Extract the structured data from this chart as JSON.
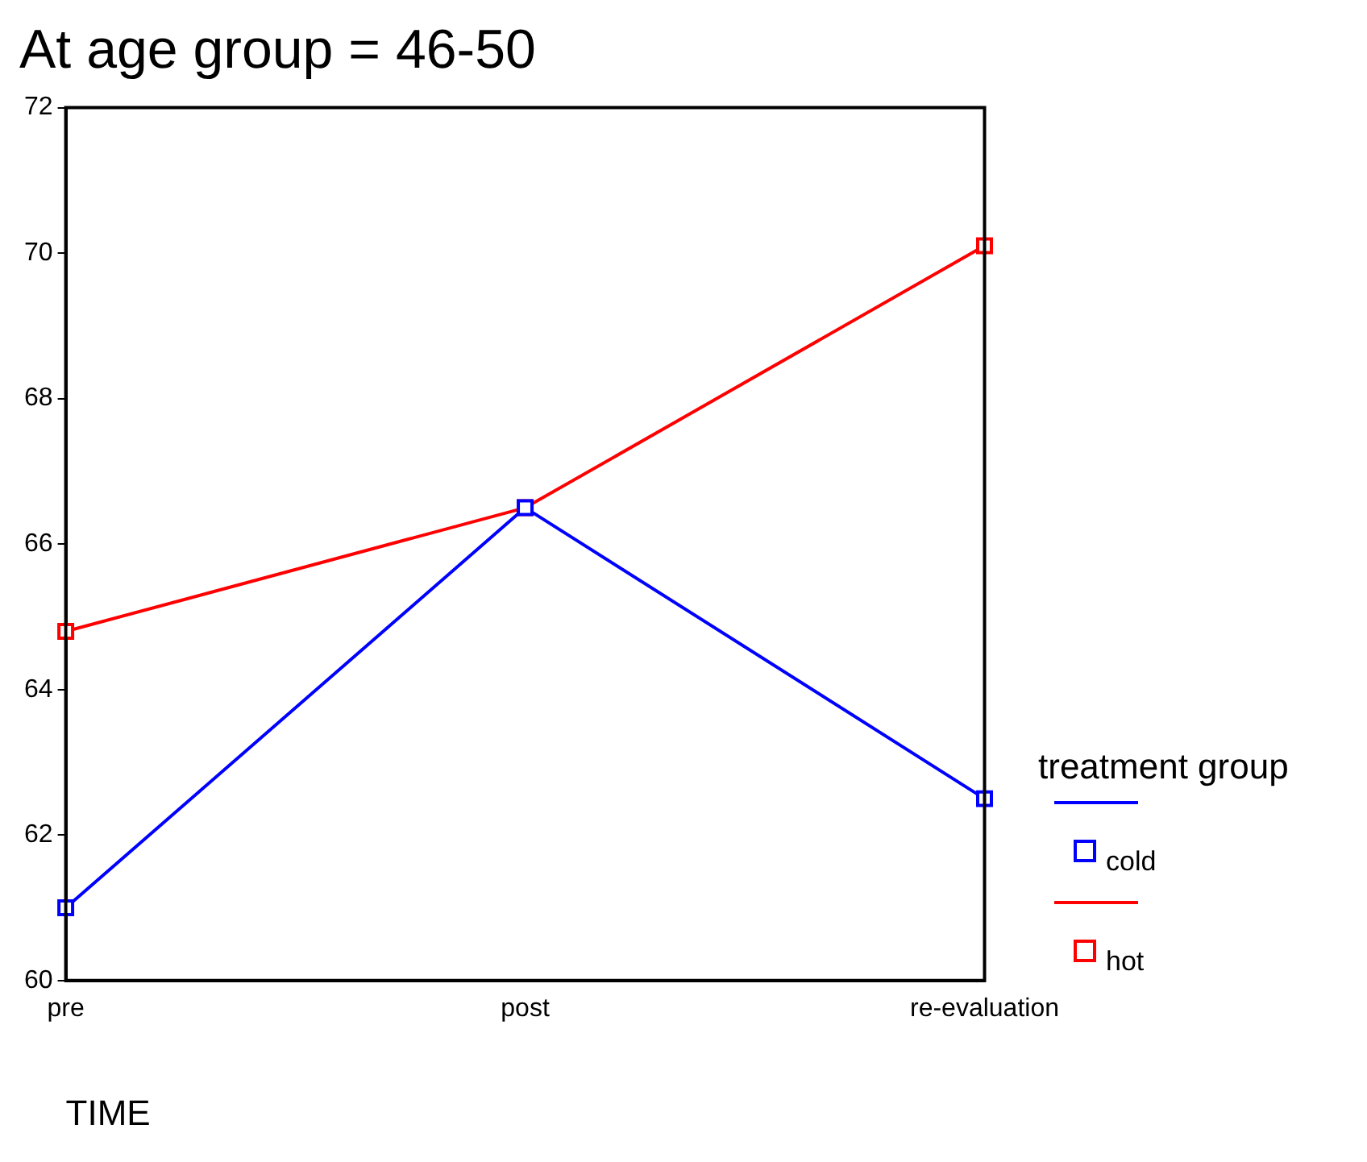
{
  "chart_data": {
    "type": "line",
    "title": "At age group = 46-50",
    "xlabel": "TIME",
    "legend_title": "treatment group",
    "categories": [
      "pre",
      "post",
      "re-evaluation"
    ],
    "series": [
      {
        "name": "cold",
        "color": "#0000ff",
        "values": [
          61.0,
          66.5,
          62.5
        ]
      },
      {
        "name": "hot",
        "color": "#ff0000",
        "values": [
          64.8,
          66.5,
          70.1
        ]
      }
    ],
    "ylim": [
      60,
      72
    ],
    "yticks": [
      60,
      62,
      64,
      66,
      68,
      70,
      72
    ],
    "grid": false,
    "legend": "right",
    "marker": "square",
    "line_style": "solid"
  }
}
